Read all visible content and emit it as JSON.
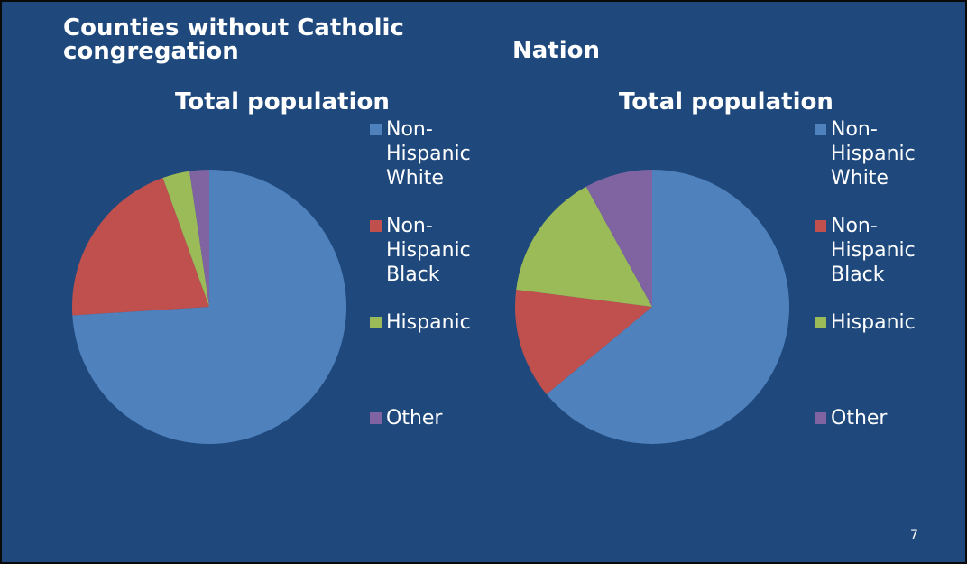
{
  "slide": {
    "left_heading": "Counties without Catholic\ncongregation",
    "right_heading": "Nation",
    "page_number": "7"
  },
  "colors": {
    "background": "#1f497d",
    "series": [
      "#4f81bd",
      "#c0504d",
      "#9bbb59",
      "#8064a2"
    ]
  },
  "chart_data": [
    {
      "type": "pie",
      "title": "Total population",
      "categories": [
        "Non-Hispanic White",
        "Non-Hispanic Black",
        "Hispanic",
        "Other"
      ],
      "values": [
        74,
        20.5,
        3.2,
        2.3
      ]
    },
    {
      "type": "pie",
      "title": "Total population",
      "categories": [
        "Non-Hispanic White",
        "Non-Hispanic Black",
        "Hispanic",
        "Other"
      ],
      "values": [
        64,
        13,
        15,
        8
      ]
    }
  ]
}
